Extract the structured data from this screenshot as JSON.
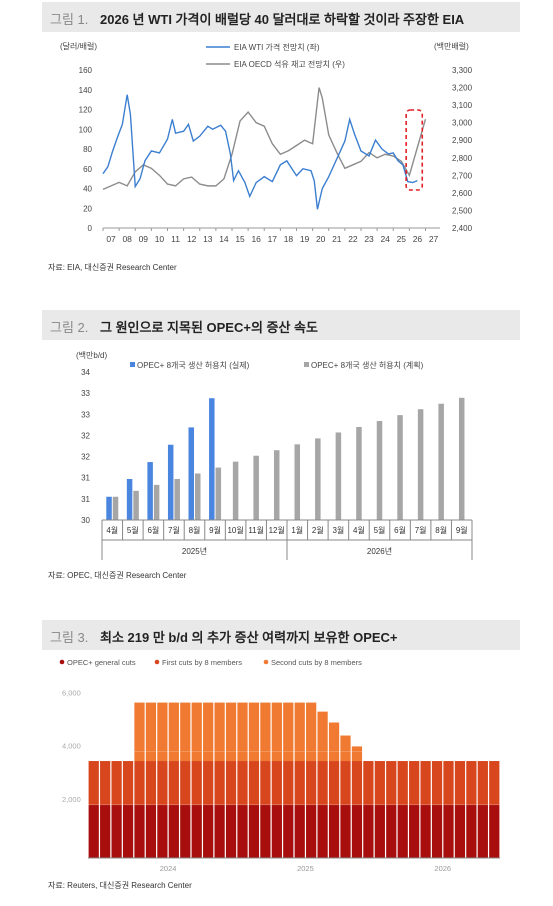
{
  "fig1": {
    "number": "그림 1.",
    "title": "2026 년 WTI 가격이 배럴당 40 달러대로 하락할 것이라 주장한 EIA",
    "source": "자료: EIA, 대신증권 Research Center",
    "colors": {
      "wti": "#3c7fd0",
      "inv": "#8c8c8c",
      "highlight": "#e0202a"
    },
    "chart_data": {
      "type": "line",
      "left_unit": "(달러/배럴)",
      "right_unit": "(백만배럴)",
      "x_ticks": [
        "07",
        "08",
        "09",
        "10",
        "11",
        "12",
        "13",
        "14",
        "15",
        "16",
        "17",
        "18",
        "19",
        "20",
        "21",
        "22",
        "23",
        "24",
        "25",
        "26",
        "27"
      ],
      "left_ticks": [
        "0",
        "20",
        "40",
        "60",
        "80",
        "100",
        "120",
        "140",
        "160"
      ],
      "right_ticks": [
        "2,400",
        "2,500",
        "2,600",
        "2,700",
        "2,800",
        "2,900",
        "3,000",
        "3,100",
        "3,200",
        "3,300"
      ],
      "ylim_left": [
        0,
        160
      ],
      "ylim_right": [
        2400,
        3300
      ],
      "series": [
        {
          "name": "EIA WTI 가격 전망치 (좌)",
          "axis": "left",
          "x": [
            2007.0,
            2007.3,
            2007.6,
            2007.9,
            2008.2,
            2008.5,
            2008.7,
            2009.0,
            2009.3,
            2009.6,
            2010.0,
            2010.5,
            2011.0,
            2011.3,
            2011.5,
            2012.0,
            2012.3,
            2012.6,
            2013.0,
            2013.5,
            2013.8,
            2014.3,
            2014.6,
            2014.9,
            2015.1,
            2015.4,
            2015.8,
            2016.1,
            2016.5,
            2017.0,
            2017.5,
            2018.0,
            2018.4,
            2018.8,
            2019.0,
            2019.4,
            2019.9,
            2020.1,
            2020.3,
            2020.6,
            2021.0,
            2021.5,
            2022.0,
            2022.3,
            2022.6,
            2023.0,
            2023.5,
            2023.9,
            2024.3,
            2024.7,
            2025.0,
            2025.3,
            2025.6,
            2025.9,
            2026.2,
            2026.5
          ],
          "y": [
            55,
            62,
            78,
            92,
            105,
            135,
            115,
            42,
            50,
            68,
            78,
            76,
            90,
            110,
            96,
            98,
            105,
            88,
            93,
            103,
            100,
            104,
            98,
            75,
            48,
            58,
            46,
            32,
            46,
            52,
            47,
            64,
            68,
            58,
            53,
            60,
            58,
            48,
            19,
            40,
            52,
            70,
            88,
            110,
            95,
            78,
            73,
            89,
            80,
            75,
            76,
            68,
            64,
            47,
            46,
            48
          ]
        },
        {
          "name": "EIA OECD 석유 재고 전망치 (우)",
          "axis": "right",
          "x": [
            2007.0,
            2007.5,
            2008.0,
            2008.5,
            2009.0,
            2009.5,
            2010.0,
            2010.5,
            2011.0,
            2011.5,
            2012.0,
            2012.5,
            2013.0,
            2013.5,
            2014.0,
            2014.5,
            2015.0,
            2015.5,
            2016.0,
            2016.5,
            2017.0,
            2017.5,
            2018.0,
            2018.5,
            2019.0,
            2019.5,
            2020.0,
            2020.4,
            2020.6,
            2021.0,
            2021.5,
            2022.0,
            2022.5,
            2023.0,
            2023.5,
            2024.0,
            2024.5,
            2025.0,
            2025.5,
            2026.0,
            2026.5,
            2027.0
          ],
          "y": [
            2620,
            2640,
            2660,
            2640,
            2720,
            2760,
            2740,
            2700,
            2650,
            2640,
            2680,
            2690,
            2650,
            2640,
            2640,
            2680,
            2820,
            3010,
            3060,
            3000,
            2980,
            2880,
            2820,
            2840,
            2870,
            2900,
            2880,
            3200,
            3140,
            2930,
            2830,
            2740,
            2760,
            2780,
            2830,
            2800,
            2820,
            2810,
            2780,
            2700,
            2860,
            3020
          ]
        }
      ],
      "highlight_range": [
        "2025.8",
        "2026.8"
      ]
    }
  },
  "fig2": {
    "number": "그림 2.",
    "title": "그 원인으로 지목된 OPEC+의 증산 속도",
    "source": "자료: OPEC, 대신증권 Research Center",
    "colors": {
      "actual": "#4a86e0",
      "plan": "#a6a6a6"
    },
    "chart_data": {
      "type": "bar",
      "unit": "(백만b/d)",
      "y_ticks": [
        "30",
        "31",
        "31",
        "32",
        "32",
        "33",
        "33",
        "34"
      ],
      "ylim": [
        30.0,
        33.5
      ],
      "categories": [
        "4월",
        "5월",
        "6월",
        "7월",
        "8월",
        "9월",
        "10월",
        "11월",
        "12월",
        "1월",
        "2월",
        "3월",
        "4월",
        "5월",
        "6월",
        "7월",
        "8월",
        "9월"
      ],
      "groups": [
        {
          "label": "2025년"
        },
        {
          "label": "2026년"
        }
      ],
      "series": [
        {
          "name": "OPEC+ 8개국 생산 허용치 (실제)",
          "values": [
            30.55,
            30.97,
            31.37,
            31.78,
            32.19,
            32.88,
            null,
            null,
            null,
            null,
            null,
            null,
            null,
            null,
            null,
            null,
            null,
            null
          ]
        },
        {
          "name": "OPEC+ 8개국 생산 허용치 (계획)",
          "values": [
            30.55,
            30.69,
            30.83,
            30.97,
            31.1,
            31.24,
            31.38,
            31.52,
            31.65,
            31.79,
            31.93,
            32.07,
            32.2,
            32.34,
            32.48,
            32.62,
            32.75,
            32.89
          ]
        }
      ]
    }
  },
  "fig3": {
    "number": "그림 3.",
    "title": "최소 219 만 b/d 의 추가 증산 여력까지 보유한 OPEC+",
    "source": "자료: Reuters, 대신증권 Research Center",
    "colors": {
      "general": "#a80e0e",
      "first": "#d8461e",
      "second": "#f07a32"
    },
    "chart_data": {
      "type": "bar",
      "stacked": true,
      "legend": [
        "OPEC+ general cuts",
        "First cuts by 8 members",
        "Second cuts by 8 members"
      ],
      "y_ticks": [
        "2,000",
        "4,000",
        "6,000"
      ],
      "ylim": [
        0,
        6700
      ],
      "x_ticks": [
        "2024",
        "2025",
        "2026"
      ],
      "months": 36,
      "general_cuts": [
        2000,
        2000,
        2000,
        2000,
        2000,
        2000,
        2000,
        2000,
        2000,
        2000,
        2000,
        2000,
        2000,
        2000,
        2000,
        2000,
        2000,
        2000,
        2000,
        2000,
        2000,
        2000,
        2000,
        2000,
        2000,
        2000,
        2000,
        2000,
        2000,
        2000,
        2000,
        2000,
        2000,
        2000,
        2000,
        2000
      ],
      "first_cuts": [
        1650,
        1650,
        1650,
        1650,
        1650,
        1650,
        1650,
        1650,
        1650,
        1650,
        1650,
        1650,
        1650,
        1650,
        1650,
        1650,
        1650,
        1650,
        1650,
        1650,
        1650,
        1650,
        1650,
        1650,
        1650,
        1650,
        1650,
        1650,
        1650,
        1650,
        1650,
        1650,
        1650,
        1650,
        1650,
        1650
      ],
      "second_cuts": [
        0,
        0,
        0,
        0,
        2200,
        2200,
        2200,
        2200,
        2200,
        2200,
        2200,
        2200,
        2200,
        2200,
        2200,
        2200,
        2200,
        2200,
        2200,
        2200,
        1860,
        1450,
        960,
        550,
        0,
        0,
        0,
        0,
        0,
        0,
        0,
        0,
        0,
        0,
        0,
        0
      ]
    }
  }
}
